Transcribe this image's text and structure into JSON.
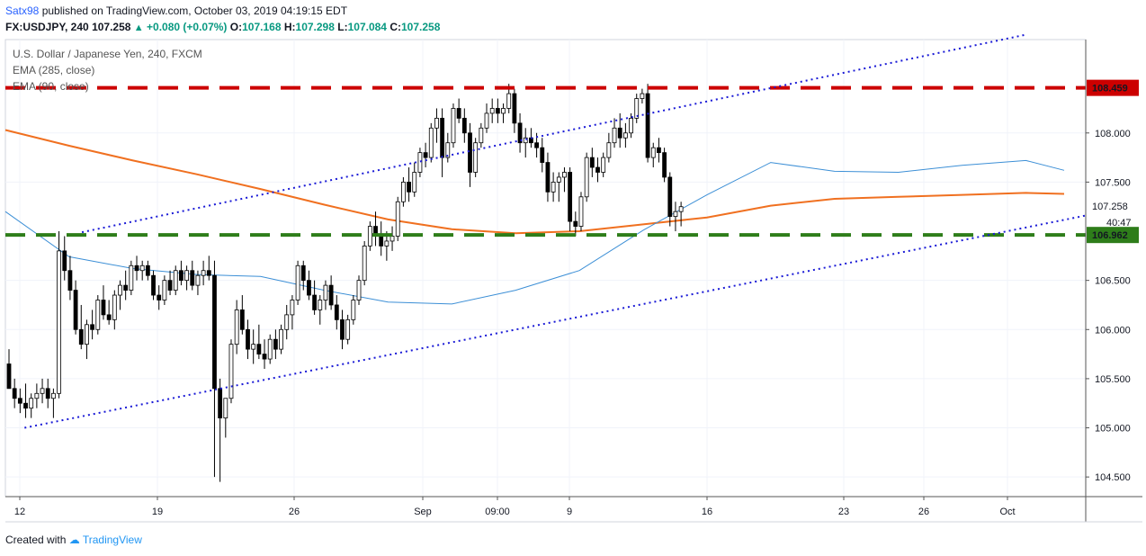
{
  "header": {
    "user": "Satx98",
    "published": "published on TradingView.com, October 03, 2019 04:19:15 EDT",
    "symbol": "FX:USDJPY, 240",
    "last": "107.258",
    "change": "+0.080 (+0.07%)",
    "o_label": "O:",
    "o": "107.168",
    "h_label": "H:",
    "h": "107.298",
    "l_label": "L:",
    "l": "107.084",
    "c_label": "C:",
    "c": "107.258"
  },
  "legend": {
    "title": "U.S. Dollar / Japanese Yen, 240, FXCM",
    "ema1": "EMA (285, close)",
    "ema2": "EMA (90, close)"
  },
  "footer": {
    "created_with": "Created with",
    "brand": "TradingView"
  },
  "colors": {
    "resistance": "#cc0000",
    "support": "#2e7d1a",
    "channel": "#1a1ad6",
    "ema285": "#f07020",
    "ema90": "#3c8fd6",
    "candle_up": "#ffffff",
    "candle_down": "#000000",
    "current_price_bg": "#ffffff"
  },
  "chart_data": {
    "type": "candlestick",
    "x_ticks": [
      "12",
      "19",
      "26",
      "Sep",
      "09:00",
      "9",
      "16",
      "23",
      "26",
      "Oct"
    ],
    "y_ticks": [
      "108.000",
      "107.500",
      "106.500",
      "106.000",
      "105.500",
      "105.000",
      "104.500"
    ],
    "ylim": [
      104.3,
      108.95
    ],
    "price_labels": {
      "resistance": "108.459",
      "support": "106.962",
      "current": "107.258",
      "countdown": "40:47"
    },
    "levels": {
      "resistance": 108.459,
      "support": 106.962
    },
    "channel": {
      "upper": [
        [
          0,
          106.99
        ],
        [
          160,
          109.0
        ]
      ],
      "lower": [
        [
          0,
          105.0
        ],
        [
          166,
          107.16
        ]
      ]
    },
    "ema285": [
      [
        0,
        108.03
      ],
      [
        10,
        107.87
      ],
      [
        20,
        107.72
      ],
      [
        30,
        107.58
      ],
      [
        40,
        107.43
      ],
      [
        50,
        107.27
      ],
      [
        60,
        107.12
      ],
      [
        70,
        107.02
      ],
      [
        80,
        106.98
      ],
      [
        90,
        107.0
      ],
      [
        100,
        107.07
      ],
      [
        110,
        107.14
      ],
      [
        120,
        107.26
      ],
      [
        130,
        107.33
      ],
      [
        140,
        107.35
      ],
      [
        150,
        107.37
      ],
      [
        160,
        107.39
      ],
      [
        166,
        107.38
      ]
    ],
    "ema90": [
      [
        0,
        107.2
      ],
      [
        10,
        106.74
      ],
      [
        20,
        106.62
      ],
      [
        30,
        106.56
      ],
      [
        40,
        106.54
      ],
      [
        50,
        106.4
      ],
      [
        60,
        106.28
      ],
      [
        70,
        106.26
      ],
      [
        80,
        106.4
      ],
      [
        90,
        106.6
      ],
      [
        100,
        107.01
      ],
      [
        110,
        107.37
      ],
      [
        120,
        107.7
      ],
      [
        130,
        107.61
      ],
      [
        140,
        107.6
      ],
      [
        150,
        107.67
      ],
      [
        160,
        107.72
      ],
      [
        166,
        107.62
      ]
    ],
    "candles": [
      [
        0,
        105.65,
        105.8,
        105.4,
        105.4
      ],
      [
        1,
        105.4,
        105.5,
        105.2,
        105.3
      ],
      [
        2,
        105.3,
        105.4,
        105.15,
        105.25
      ],
      [
        3,
        105.25,
        105.45,
        105.1,
        105.2
      ],
      [
        4,
        105.2,
        105.35,
        105.1,
        105.3
      ],
      [
        5,
        105.3,
        105.45,
        105.2,
        105.35
      ],
      [
        6,
        105.35,
        105.5,
        105.25,
        105.4
      ],
      [
        7,
        105.4,
        105.5,
        105.2,
        105.3
      ],
      [
        8,
        105.3,
        105.4,
        105.1,
        105.35
      ],
      [
        9,
        105.35,
        107.0,
        105.3,
        106.8
      ],
      [
        10,
        106.8,
        106.95,
        106.5,
        106.6
      ],
      [
        11,
        106.6,
        106.75,
        106.3,
        106.4
      ],
      [
        12,
        106.4,
        106.5,
        105.95,
        106.0
      ],
      [
        13,
        106.0,
        106.25,
        105.8,
        105.85
      ],
      [
        14,
        105.85,
        106.1,
        105.7,
        106.05
      ],
      [
        15,
        106.05,
        106.2,
        105.9,
        106.0
      ],
      [
        16,
        106.0,
        106.35,
        105.95,
        106.3
      ],
      [
        17,
        106.3,
        106.45,
        106.1,
        106.15
      ],
      [
        18,
        106.15,
        106.3,
        106.05,
        106.1
      ],
      [
        19,
        106.1,
        106.4,
        106.0,
        106.35
      ],
      [
        20,
        106.35,
        106.5,
        106.2,
        106.45
      ],
      [
        21,
        106.45,
        106.6,
        106.3,
        106.4
      ],
      [
        22,
        106.4,
        106.7,
        106.35,
        106.65
      ],
      [
        23,
        106.65,
        106.75,
        106.5,
        106.6
      ],
      [
        24,
        106.6,
        106.7,
        106.5,
        106.65
      ],
      [
        25,
        106.65,
        106.7,
        106.5,
        106.55
      ],
      [
        26,
        106.55,
        106.6,
        106.3,
        106.35
      ],
      [
        27,
        106.35,
        106.45,
        106.2,
        106.3
      ],
      [
        28,
        106.3,
        106.55,
        106.25,
        106.5
      ],
      [
        29,
        106.5,
        106.6,
        106.35,
        106.4
      ],
      [
        30,
        106.4,
        106.65,
        106.35,
        106.6
      ],
      [
        31,
        106.6,
        106.7,
        106.45,
        106.5
      ],
      [
        32,
        106.5,
        106.65,
        106.4,
        106.6
      ],
      [
        33,
        106.6,
        106.7,
        106.4,
        106.45
      ],
      [
        34,
        106.45,
        106.6,
        106.35,
        106.55
      ],
      [
        35,
        106.55,
        106.7,
        106.45,
        106.6
      ],
      [
        36,
        106.6,
        106.75,
        106.5,
        106.55
      ],
      [
        37,
        106.55,
        106.7,
        104.5,
        105.4
      ],
      [
        38,
        105.4,
        105.5,
        104.45,
        105.1
      ],
      [
        39,
        105.1,
        105.3,
        104.9,
        105.3
      ],
      [
        40,
        105.3,
        105.9,
        105.25,
        105.85
      ],
      [
        41,
        105.85,
        106.3,
        105.75,
        106.2
      ],
      [
        42,
        106.2,
        106.35,
        105.95,
        106.0
      ],
      [
        43,
        106.0,
        106.1,
        105.7,
        105.8
      ],
      [
        44,
        105.8,
        106.0,
        105.65,
        105.85
      ],
      [
        45,
        105.85,
        106.05,
        105.7,
        105.75
      ],
      [
        46,
        105.75,
        105.9,
        105.6,
        105.7
      ],
      [
        47,
        105.7,
        105.95,
        105.65,
        105.9
      ],
      [
        48,
        105.9,
        106.0,
        105.7,
        105.8
      ],
      [
        49,
        105.8,
        106.05,
        105.75,
        106.0
      ],
      [
        50,
        106.0,
        106.25,
        105.9,
        106.15
      ],
      [
        51,
        106.15,
        106.35,
        106.0,
        106.3
      ],
      [
        52,
        106.3,
        106.7,
        106.25,
        106.65
      ],
      [
        53,
        106.65,
        106.7,
        106.4,
        106.5
      ],
      [
        54,
        106.5,
        106.6,
        106.3,
        106.35
      ],
      [
        55,
        106.35,
        106.5,
        106.15,
        106.2
      ],
      [
        56,
        106.2,
        106.35,
        106.05,
        106.3
      ],
      [
        57,
        106.3,
        106.5,
        106.2,
        106.45
      ],
      [
        58,
        106.45,
        106.55,
        106.2,
        106.25
      ],
      [
        59,
        106.25,
        106.35,
        106.0,
        106.1
      ],
      [
        60,
        106.1,
        106.2,
        105.8,
        105.9
      ],
      [
        61,
        105.9,
        106.15,
        105.85,
        106.1
      ],
      [
        62,
        106.1,
        106.35,
        106.05,
        106.3
      ],
      [
        63,
        106.3,
        106.55,
        106.25,
        106.5
      ],
      [
        64,
        106.5,
        106.9,
        106.45,
        106.85
      ],
      [
        65,
        106.85,
        107.1,
        106.8,
        107.05
      ],
      [
        66,
        107.05,
        107.2,
        106.85,
        106.95
      ],
      [
        67,
        106.95,
        107.1,
        106.75,
        106.85
      ],
      [
        68,
        106.85,
        107.0,
        106.7,
        106.9
      ],
      [
        69,
        106.9,
        107.05,
        106.8,
        106.95
      ],
      [
        70,
        106.95,
        107.35,
        106.9,
        107.3
      ],
      [
        71,
        107.3,
        107.55,
        107.25,
        107.5
      ],
      [
        72,
        107.5,
        107.65,
        107.3,
        107.4
      ],
      [
        73,
        107.4,
        107.7,
        107.35,
        107.6
      ],
      [
        74,
        107.6,
        107.85,
        107.55,
        107.8
      ],
      [
        75,
        107.8,
        107.9,
        107.65,
        107.75
      ],
      [
        76,
        107.75,
        108.1,
        107.7,
        108.05
      ],
      [
        77,
        108.05,
        108.25,
        107.9,
        108.15
      ],
      [
        78,
        108.15,
        108.25,
        107.55,
        107.75
      ],
      [
        79,
        107.75,
        108.0,
        107.7,
        107.9
      ],
      [
        80,
        107.9,
        108.3,
        107.85,
        108.25
      ],
      [
        81,
        108.25,
        108.35,
        108.1,
        108.15
      ],
      [
        82,
        108.15,
        108.25,
        107.9,
        108.0
      ],
      [
        83,
        108.0,
        108.1,
        107.45,
        107.6
      ],
      [
        84,
        107.6,
        107.95,
        107.55,
        107.9
      ],
      [
        85,
        107.9,
        108.1,
        107.85,
        108.05
      ],
      [
        86,
        108.05,
        108.3,
        108.0,
        108.2
      ],
      [
        87,
        108.2,
        108.35,
        108.1,
        108.25
      ],
      [
        88,
        108.25,
        108.35,
        108.1,
        108.2
      ],
      [
        89,
        108.2,
        108.3,
        108.1,
        108.25
      ],
      [
        90,
        108.25,
        108.5,
        108.2,
        108.4
      ],
      [
        91,
        108.4,
        108.45,
        108.0,
        108.1
      ],
      [
        92,
        108.1,
        108.2,
        107.8,
        107.9
      ],
      [
        93,
        107.9,
        108.05,
        107.75,
        107.95
      ],
      [
        94,
        107.95,
        108.05,
        107.85,
        107.9
      ],
      [
        95,
        107.9,
        108.0,
        107.75,
        107.85
      ],
      [
        96,
        107.85,
        107.95,
        107.6,
        107.7
      ],
      [
        97,
        107.7,
        107.8,
        107.3,
        107.4
      ],
      [
        98,
        107.4,
        107.6,
        107.3,
        107.5
      ],
      [
        99,
        107.5,
        107.6,
        107.3,
        107.55
      ],
      [
        100,
        107.55,
        107.65,
        107.4,
        107.6
      ],
      [
        101,
        107.6,
        107.65,
        107.0,
        107.1
      ],
      [
        102,
        107.1,
        107.2,
        106.95,
        107.05
      ],
      [
        103,
        107.05,
        107.4,
        107.0,
        107.35
      ],
      [
        104,
        107.35,
        107.8,
        107.3,
        107.75
      ],
      [
        105,
        107.75,
        107.85,
        107.55,
        107.65
      ],
      [
        106,
        107.65,
        107.75,
        107.5,
        107.6
      ],
      [
        107,
        107.6,
        107.8,
        107.55,
        107.75
      ],
      [
        108,
        107.75,
        108.0,
        107.7,
        107.9
      ],
      [
        109,
        107.9,
        108.15,
        107.85,
        108.05
      ],
      [
        110,
        108.05,
        108.2,
        107.85,
        107.95
      ],
      [
        111,
        107.95,
        108.1,
        107.85,
        108.0
      ],
      [
        112,
        108.0,
        108.2,
        107.95,
        108.15
      ],
      [
        113,
        108.15,
        108.4,
        108.1,
        108.35
      ],
      [
        114,
        108.35,
        108.45,
        108.3,
        108.4
      ],
      [
        115,
        108.4,
        108.5,
        107.7,
        107.75
      ],
      [
        116,
        107.75,
        107.9,
        107.65,
        107.85
      ],
      [
        117,
        107.85,
        107.95,
        107.7,
        107.8
      ],
      [
        118,
        107.8,
        107.85,
        107.5,
        107.55
      ],
      [
        119,
        107.55,
        107.6,
        107.05,
        107.15
      ],
      [
        120,
        107.15,
        107.3,
        107.0,
        107.2
      ],
      [
        121,
        107.2,
        107.3,
        107.05,
        107.25
      ]
    ]
  }
}
